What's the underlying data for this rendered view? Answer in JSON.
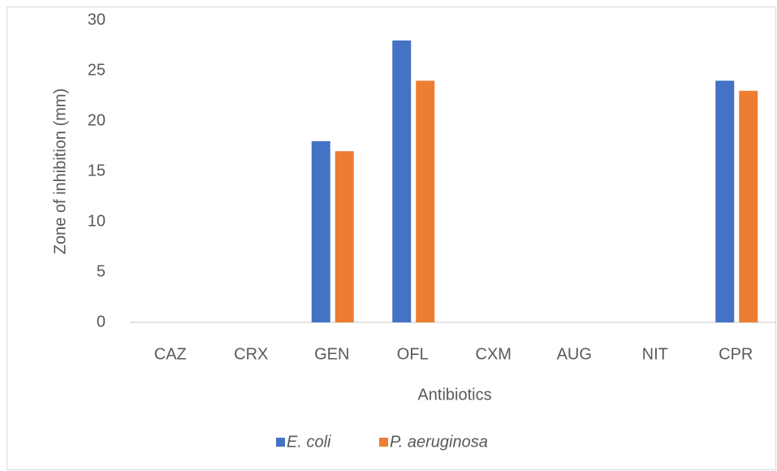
{
  "chart_data": {
    "type": "bar",
    "x_label": "Antibiotics",
    "y_label": "Zone of inhibition (mm)",
    "categories": [
      "CAZ",
      "CRX",
      "GEN",
      "OFL",
      "CXM",
      "AUG",
      "NIT",
      "CPR"
    ],
    "series": [
      {
        "name": "E. coli",
        "color": "#4472c4",
        "values": [
          0,
          0,
          18,
          28,
          0,
          0,
          0,
          24
        ]
      },
      {
        "name": "P. aeruginosa",
        "color": "#ed7d31",
        "values": [
          0,
          0,
          17,
          24,
          0,
          0,
          0,
          23
        ]
      }
    ],
    "ylim": [
      0,
      30
    ],
    "yticks": [
      0,
      5,
      10,
      15,
      20,
      25,
      30
    ],
    "grid": false,
    "legend": "bottom"
  }
}
